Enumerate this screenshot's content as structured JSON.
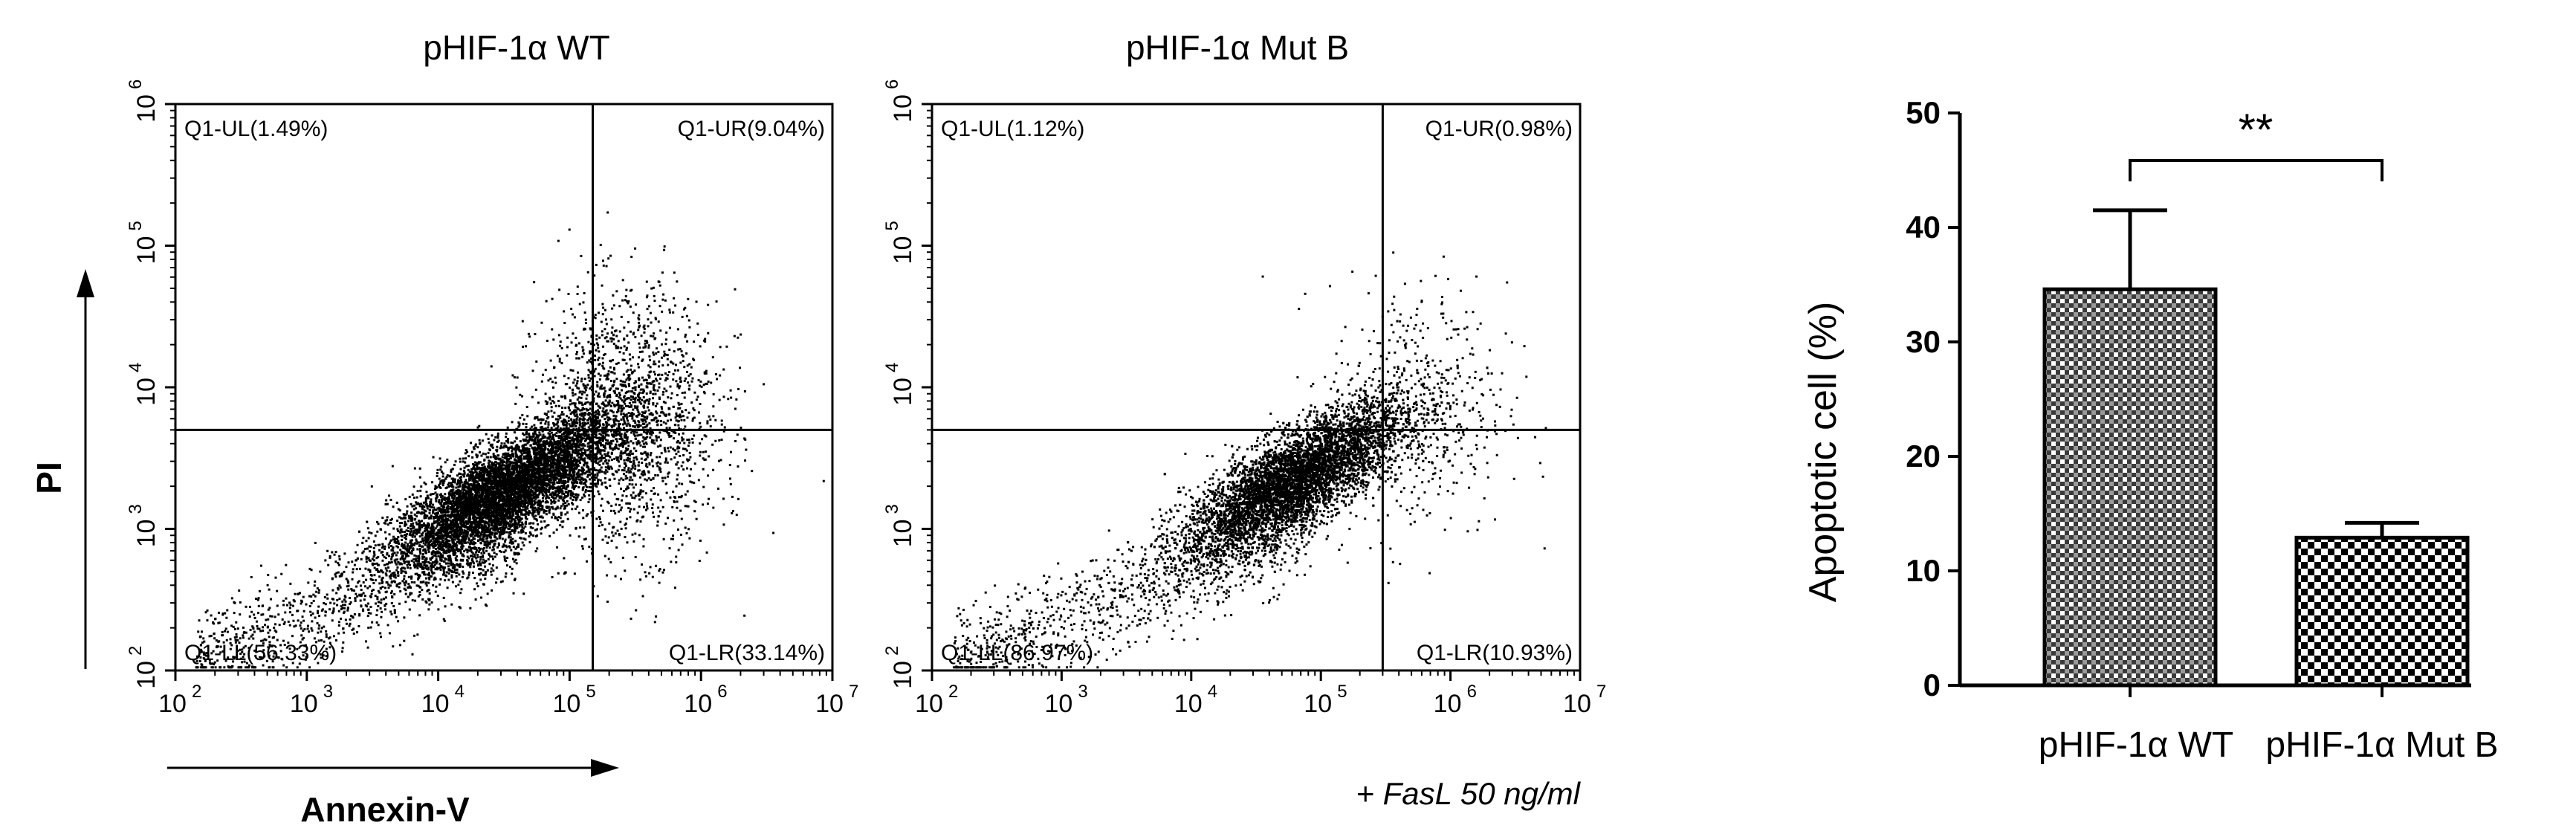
{
  "chart_data": [
    {
      "type": "scatter",
      "title": "pHIF-1α WT",
      "xlabel": "Annexin-V",
      "ylabel": "PI",
      "xscale": "log",
      "yscale": "log",
      "xlim": [
        100,
        10000000
      ],
      "ylim": [
        100,
        1000000
      ],
      "xticks": [
        "10",
        "10",
        "10",
        "10",
        "10",
        "10"
      ],
      "xtick_exponents": [
        "2",
        "3",
        "4",
        "5",
        "6",
        "7"
      ],
      "yticks": [
        "10",
        "10",
        "10",
        "10",
        "10"
      ],
      "ytick_exponents": [
        "2",
        "3",
        "4",
        "5",
        "6"
      ],
      "gate": {
        "x": 150000,
        "y": 5000
      },
      "quadrants": {
        "UL": "Q1-UL(1.49%)",
        "UR": "Q1-UR(9.04%)",
        "LL": "Q1-LL(56.33%)",
        "LR": "Q1-LR(33.14%)"
      },
      "population": {
        "center_x": 30000,
        "center_y": 1800,
        "percent_lower_right": 33.14
      }
    },
    {
      "type": "scatter",
      "title": "pHIF-1α Mut B",
      "xscale": "log",
      "yscale": "log",
      "xlim": [
        100,
        10000000
      ],
      "ylim": [
        100,
        1000000
      ],
      "xticks": [
        "10",
        "10",
        "10",
        "10",
        "10",
        "10"
      ],
      "xtick_exponents": [
        "2",
        "3",
        "4",
        "5",
        "6",
        "7"
      ],
      "yticks": [
        "10",
        "10",
        "10",
        "10",
        "10"
      ],
      "ytick_exponents": [
        "2",
        "3",
        "4",
        "5",
        "6"
      ],
      "gate": {
        "x": 300000,
        "y": 5000
      },
      "quadrants": {
        "UL": "Q1-UL(1.12%)",
        "UR": "Q1-UR(0.98%)",
        "LL": "Q1-LL(86.97%)",
        "LR": "Q1-LR(10.93%)"
      },
      "population": {
        "center_x": 60000,
        "center_y": 2200
      },
      "annotation": "+ FasL 50 ng/ml"
    },
    {
      "type": "bar",
      "categories": [
        "pHIF-1α WT",
        "pHIF-1α Mut B"
      ],
      "values": [
        34.6,
        12.9
      ],
      "errors": [
        6.9,
        1.3
      ],
      "ylabel": "Apoptotic cell (%)",
      "ylim": [
        0,
        50
      ],
      "yticks": [
        "0",
        "10",
        "20",
        "30",
        "40",
        "50"
      ],
      "significance": "**"
    }
  ]
}
